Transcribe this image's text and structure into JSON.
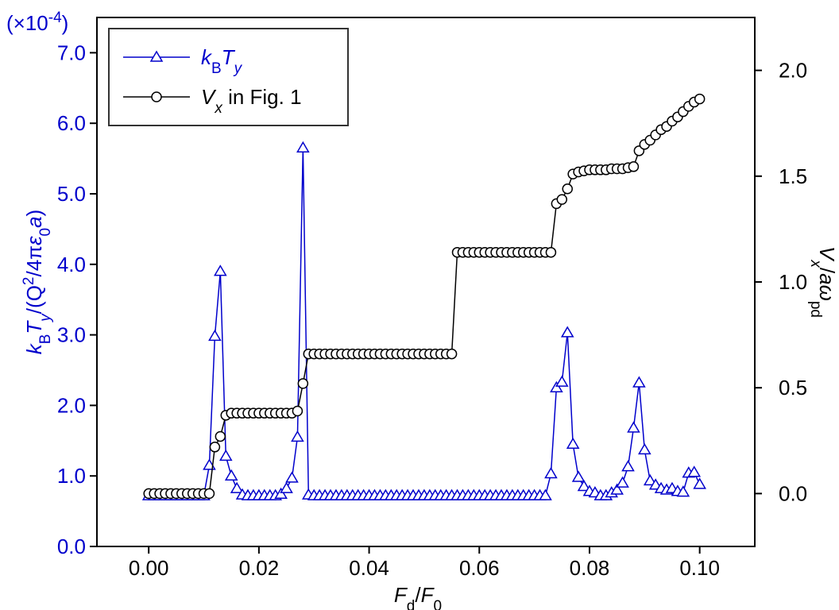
{
  "chart_data": {
    "type": "line",
    "x_label": [
      {
        "text": "F",
        "italic": true
      },
      {
        "text": "d",
        "sub": true
      },
      {
        "text": "/",
        "italic": false
      },
      {
        "text": "F",
        "italic": true
      },
      {
        "text": "0",
        "sub": true
      }
    ],
    "y_label": [
      {
        "text": "k",
        "italic": true
      },
      {
        "text": "B",
        "sub": true
      },
      {
        "text": "T",
        "italic": true
      },
      {
        "text": "y",
        "sub": true,
        "italic": true
      },
      {
        "text": "/(Q"
      },
      {
        "text": "2",
        "sup": true
      },
      {
        "text": "/4π"
      },
      {
        "text": "ε",
        "italic": true
      },
      {
        "text": "0",
        "sub": true
      },
      {
        "text": "a",
        "italic": true
      },
      {
        "text": ")"
      }
    ],
    "y2_label": [
      {
        "text": "V",
        "italic": true
      },
      {
        "text": "x",
        "sub": true,
        "italic": true
      },
      {
        "text": "/"
      },
      {
        "text": "aω",
        "italic": true
      },
      {
        "text": "pd",
        "sub": true
      }
    ],
    "y_exponent": [
      {
        "text": "(×10"
      },
      {
        "text": "-4",
        "sup": true
      },
      {
        "text": ")"
      }
    ],
    "xlim": [
      -0.0094,
      0.11
    ],
    "xticks": [
      {
        "value": 0,
        "label": "0.00"
      },
      {
        "value": 0.02,
        "label": "0.02"
      },
      {
        "value": 0.04,
        "label": "0.04"
      },
      {
        "value": 0.06,
        "label": "0.06"
      },
      {
        "value": 0.08,
        "label": "0.08"
      },
      {
        "value": 0.1,
        "label": "0.10"
      }
    ],
    "ylim": [
      0,
      7.5
    ],
    "yticks": [
      {
        "value": 0,
        "label": "0.0"
      },
      {
        "value": 1,
        "label": "1.0"
      },
      {
        "value": 2,
        "label": "2.0"
      },
      {
        "value": 3,
        "label": "3.0"
      },
      {
        "value": 4,
        "label": "4.0"
      },
      {
        "value": 5,
        "label": "5.0"
      },
      {
        "value": 6,
        "label": "6.0"
      },
      {
        "value": 7,
        "label": "7.0"
      }
    ],
    "y2lim": [
      -0.25,
      2.25
    ],
    "y2ticks": [
      {
        "value": 0,
        "label": "0.0"
      },
      0.5,
      {
        "value": 1,
        "label": "1.0"
      },
      {
        "value": 1.5,
        "label": "1.5"
      },
      {
        "value": 2,
        "label": "2.0"
      }
    ],
    "legend": "upper left",
    "x": [
      0,
      0.001,
      0.002,
      0.003,
      0.004,
      0.005,
      0.006,
      0.007,
      0.008,
      0.009,
      0.01,
      0.011,
      0.012,
      0.013,
      0.014,
      0.015,
      0.016,
      0.017,
      0.018,
      0.019,
      0.02,
      0.021,
      0.022,
      0.023,
      0.024,
      0.025,
      0.026,
      0.027,
      0.028,
      0.029,
      0.03,
      0.031,
      0.032,
      0.033,
      0.034,
      0.035,
      0.036,
      0.037,
      0.038,
      0.039,
      0.04,
      0.041,
      0.042,
      0.043,
      0.044,
      0.045,
      0.046,
      0.047,
      0.048,
      0.049,
      0.05,
      0.051,
      0.052,
      0.053,
      0.054,
      0.055,
      0.056,
      0.057,
      0.058,
      0.059,
      0.06,
      0.061,
      0.062,
      0.063,
      0.064,
      0.065,
      0.066,
      0.067,
      0.068,
      0.069,
      0.07,
      0.071,
      0.072,
      0.073,
      0.074,
      0.075,
      0.076,
      0.077,
      0.078,
      0.079,
      0.08,
      0.081,
      0.082,
      0.083,
      0.084,
      0.085,
      0.086,
      0.087,
      0.088,
      0.089,
      0.09,
      0.091,
      0.092,
      0.093,
      0.094,
      0.095,
      0.096,
      0.097,
      0.098,
      0.099,
      0.1
    ],
    "series": [
      {
        "name": [
          {
            "text": "k",
            "italic": true
          },
          {
            "text": "B",
            "sub": true
          },
          {
            "text": "T",
            "italic": true
          },
          {
            "text": "y",
            "sub": true,
            "italic": true
          }
        ],
        "color": "#0000cc",
        "marker": "triangle",
        "axis": "y",
        "values": [
          0.72,
          0.72,
          0.72,
          0.72,
          0.72,
          0.72,
          0.72,
          0.72,
          0.72,
          0.72,
          0.72,
          1.15,
          2.98,
          3.9,
          1.28,
          1.0,
          0.82,
          0.73,
          0.72,
          0.72,
          0.72,
          0.72,
          0.72,
          0.72,
          0.74,
          0.82,
          0.97,
          1.55,
          5.65,
          0.73,
          0.72,
          0.72,
          0.72,
          0.72,
          0.72,
          0.72,
          0.72,
          0.72,
          0.72,
          0.72,
          0.72,
          0.72,
          0.72,
          0.72,
          0.72,
          0.72,
          0.72,
          0.72,
          0.72,
          0.72,
          0.72,
          0.72,
          0.72,
          0.72,
          0.72,
          0.72,
          0.72,
          0.72,
          0.72,
          0.72,
          0.72,
          0.72,
          0.72,
          0.72,
          0.72,
          0.72,
          0.72,
          0.72,
          0.72,
          0.72,
          0.72,
          0.72,
          0.72,
          1.03,
          2.25,
          2.33,
          3.03,
          1.45,
          0.98,
          0.85,
          0.78,
          0.76,
          0.72,
          0.72,
          0.76,
          0.8,
          0.9,
          1.13,
          1.68,
          2.32,
          1.37,
          0.93,
          0.87,
          0.82,
          0.8,
          0.82,
          0.78,
          0.77,
          1.04,
          1.05,
          0.88
        ]
      },
      {
        "name": [
          {
            "text": "V",
            "italic": true
          },
          {
            "text": "x",
            "sub": true,
            "italic": true
          },
          {
            "text": " in Fig. 1"
          }
        ],
        "color": "#000000",
        "marker": "circle",
        "axis": "y2",
        "values": [
          0,
          0,
          0,
          0,
          0,
          0,
          0,
          0,
          0,
          0,
          0,
          0,
          0.22,
          0.27,
          0.37,
          0.38,
          0.38,
          0.38,
          0.38,
          0.38,
          0.38,
          0.38,
          0.38,
          0.38,
          0.38,
          0.38,
          0.38,
          0.39,
          0.52,
          0.66,
          0.66,
          0.66,
          0.66,
          0.66,
          0.66,
          0.66,
          0.66,
          0.66,
          0.66,
          0.66,
          0.66,
          0.66,
          0.66,
          0.66,
          0.66,
          0.66,
          0.66,
          0.66,
          0.66,
          0.66,
          0.66,
          0.66,
          0.66,
          0.66,
          0.66,
          0.66,
          1.14,
          1.14,
          1.14,
          1.14,
          1.14,
          1.14,
          1.14,
          1.14,
          1.14,
          1.14,
          1.14,
          1.14,
          1.14,
          1.14,
          1.14,
          1.14,
          1.14,
          1.14,
          1.37,
          1.39,
          1.44,
          1.51,
          1.52,
          1.525,
          1.53,
          1.53,
          1.53,
          1.53,
          1.535,
          1.535,
          1.535,
          1.54,
          1.545,
          1.62,
          1.65,
          1.67,
          1.695,
          1.72,
          1.735,
          1.76,
          1.78,
          1.805,
          1.83,
          1.85,
          1.865
        ]
      }
    ]
  }
}
